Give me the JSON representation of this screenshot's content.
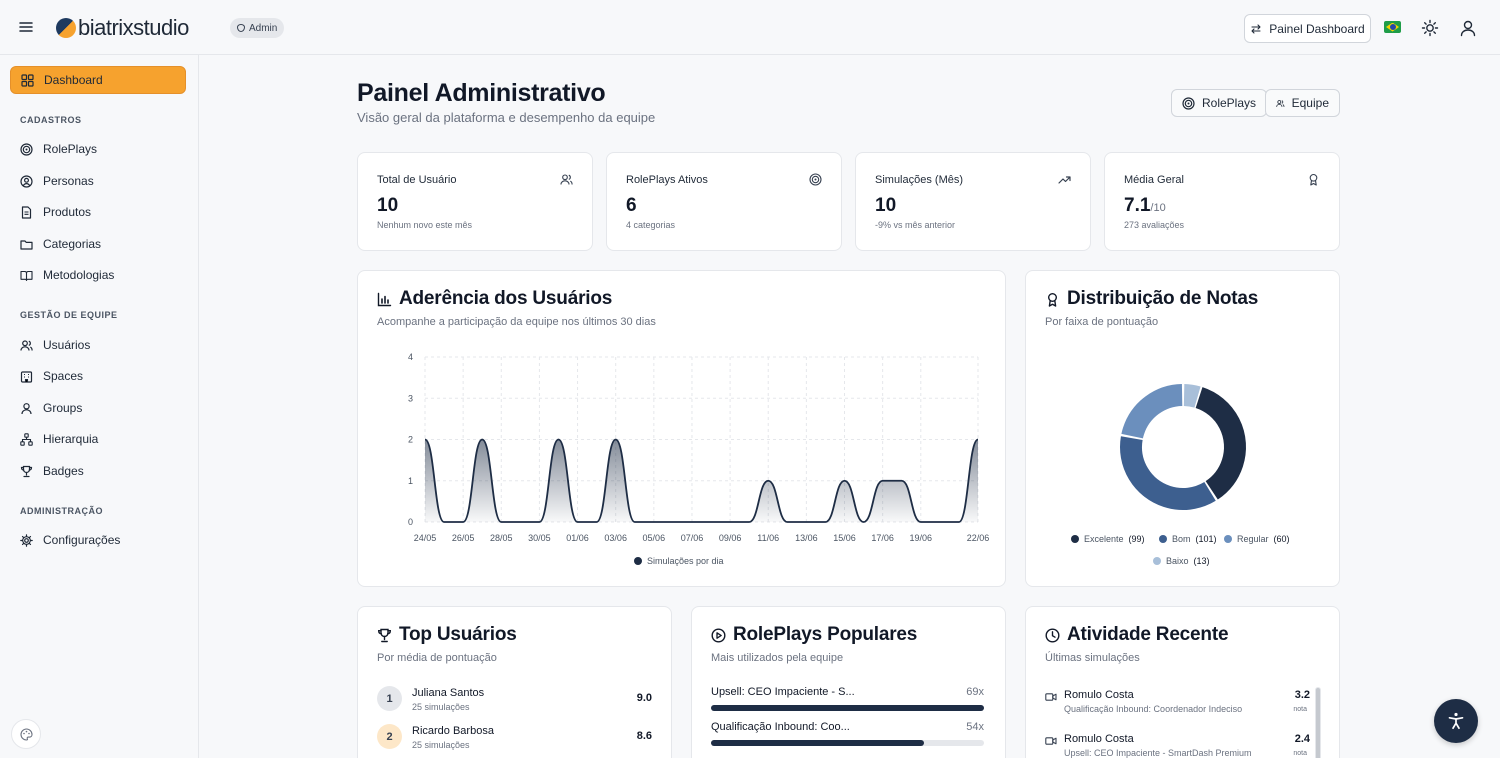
{
  "header": {
    "logo_text": "biatrixstudio",
    "role_badge": "Admin",
    "dashboard_button": "Painel Dashboard",
    "flag": "brazil-flag-icon",
    "theme_icon": "sun-icon",
    "user_icon": "user-icon"
  },
  "sidebar": {
    "dashboard": "Dashboard",
    "sections": {
      "cadastros": "CADASTROS",
      "gestao": "GESTÃO DE EQUIPE",
      "admin": "ADMINISTRAÇÃO"
    },
    "items": {
      "roleplays": "RolePlays",
      "personas": "Personas",
      "produtos": "Produtos",
      "categorias": "Categorias",
      "metodologias": "Metodologias",
      "usuarios": "Usuários",
      "spaces": "Spaces",
      "groups": "Groups",
      "hierarquia": "Hierarquia",
      "badges": "Badges",
      "configuracoes": "Configurações"
    }
  },
  "page": {
    "title": "Painel Administrativo",
    "subtitle": "Visão geral da plataforma e desempenho da equipe",
    "btn_roleplays": "RolePlays",
    "btn_equipe": "Equipe"
  },
  "stats": [
    {
      "label": "Total de Usuário",
      "value": "10",
      "suffix": "",
      "sub": "Nenhum novo este mês"
    },
    {
      "label": "RolePlays Ativos",
      "value": "6",
      "suffix": "",
      "sub": "4 categorias"
    },
    {
      "label": "Simulações (Mês)",
      "value": "10",
      "suffix": "",
      "sub": "-9% vs mês anterior"
    },
    {
      "label": "Média Geral",
      "value": "7.1",
      "suffix": "/10",
      "sub": "273 avaliações"
    }
  ],
  "adherence": {
    "title": "Aderência dos Usuários",
    "subtitle": "Acompanhe a participação da equipe nos últimos 30 dias",
    "legend": "Simulações por dia"
  },
  "distribution": {
    "title": "Distribuição de Notas",
    "subtitle": "Por faixa de pontuação",
    "legend": [
      {
        "name": "Excelente",
        "count": "(99)",
        "color": "#1e2d45"
      },
      {
        "name": "Bom",
        "count": "(101)",
        "color": "#3d5f8f"
      },
      {
        "name": "Regular",
        "count": "(60)",
        "color": "#6b8fbd"
      },
      {
        "name": "Baixo",
        "count": "(13)",
        "color": "#a8bfd9"
      }
    ]
  },
  "top_users": {
    "title": "Top Usuários",
    "subtitle": "Por média de pontuação",
    "rows": [
      {
        "rank": "1",
        "name": "Juliana Santos",
        "sub": "25 simulações",
        "score": "9.0"
      },
      {
        "rank": "2",
        "name": "Ricardo Barbosa",
        "sub": "25 simulações",
        "score": "8.6"
      }
    ]
  },
  "popular": {
    "title": "RolePlays Populares",
    "subtitle": "Mais utilizados pela equipe",
    "rows": [
      {
        "name": "Upsell: CEO Impaciente - S...",
        "count": "69x",
        "pct": 100
      },
      {
        "name": "Qualificação Inbound: Coo...",
        "count": "54x",
        "pct": 78
      }
    ]
  },
  "activity": {
    "title": "Atividade Recente",
    "subtitle": "Últimas simulações",
    "nota_label": "nota",
    "rows": [
      {
        "name": "Romulo Costa",
        "sub": "Qualificação Inbound: Coordenador Indeciso",
        "score": "3.2"
      },
      {
        "name": "Romulo Costa",
        "sub": "Upsell: CEO Impaciente - SmartDash Premium",
        "score": "2.4"
      }
    ]
  },
  "chart_data": {
    "type": "area",
    "title": "Aderência dos Usuários",
    "x": [
      "24/05",
      "25/05",
      "26/05",
      "27/05",
      "28/05",
      "29/05",
      "30/05",
      "31/05",
      "01/06",
      "02/06",
      "03/06",
      "04/06",
      "05/06",
      "06/06",
      "07/06",
      "08/06",
      "09/06",
      "10/06",
      "11/06",
      "12/06",
      "13/06",
      "14/06",
      "15/06",
      "16/06",
      "17/06",
      "18/06",
      "19/06",
      "20/06",
      "21/06",
      "22/06"
    ],
    "x_ticks": [
      "24/05",
      "26/05",
      "28/05",
      "30/05",
      "01/06",
      "03/06",
      "05/06",
      "07/06",
      "09/06",
      "11/06",
      "13/06",
      "15/06",
      "17/06",
      "19/06",
      "22/06"
    ],
    "series": [
      {
        "name": "Simulações por dia",
        "values": [
          2,
          0,
          0,
          2,
          0,
          0,
          0,
          2,
          0,
          0,
          2,
          0,
          0,
          0,
          0,
          0,
          0,
          0,
          1,
          0,
          0,
          0,
          1,
          0,
          1,
          1,
          0,
          0,
          0,
          2
        ]
      }
    ],
    "ylim": [
      0,
      4
    ],
    "y_ticks": [
      0,
      1,
      2,
      3,
      4
    ],
    "grid": true,
    "legend": "bottom"
  }
}
